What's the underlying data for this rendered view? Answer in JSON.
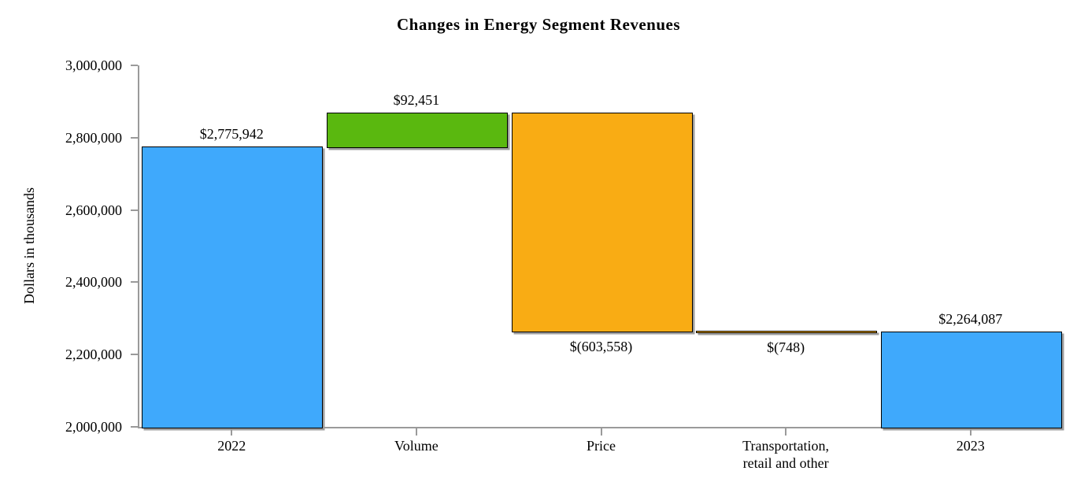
{
  "chart_data": {
    "type": "bar",
    "subtype": "waterfall",
    "title": "Changes in Energy Segment Revenues",
    "xlabel": "",
    "ylabel": "Dollars in thousands",
    "ylim": [
      2000000,
      3000000
    ],
    "yticks": [
      2000000,
      2200000,
      2400000,
      2600000,
      2800000,
      3000000
    ],
    "ytick_labels": [
      "2,000,000",
      "2,200,000",
      "2,400,000",
      "2,600,000",
      "2,800,000",
      "3,000,000"
    ],
    "grid": false,
    "legend": false,
    "categories": [
      "2022",
      "Volume",
      "Price",
      "Transportation,\nretail and other",
      "2023"
    ],
    "values": [
      2775942,
      92451,
      -603558,
      -748,
      2264087
    ],
    "bars": [
      {
        "category": "2022",
        "role": "total",
        "value": 2775942,
        "start": 0,
        "end": 2775942,
        "label": "$2,775,942",
        "label_position": "above",
        "color": "#3FA9FC"
      },
      {
        "category": "Volume",
        "role": "increase",
        "value": 92451,
        "start": 2775942,
        "end": 2868393,
        "label": "$92,451",
        "label_position": "above",
        "color": "#5AB80F"
      },
      {
        "category": "Price",
        "role": "decrease",
        "value": -603558,
        "start": 2868393,
        "end": 2264835,
        "label": "$(603,558)",
        "label_position": "below",
        "color": "#F9AC14"
      },
      {
        "category": "Transportation,\nretail and other",
        "role": "decrease",
        "value": -748,
        "start": 2264835,
        "end": 2264087,
        "label": "$(748)",
        "label_position": "below",
        "color": "#F9AC14"
      },
      {
        "category": "2023",
        "role": "total",
        "value": 2264087,
        "start": 0,
        "end": 2264087,
        "label": "$2,264,087",
        "label_position": "above",
        "color": "#3FA9FC"
      }
    ],
    "colors": {
      "total_bar": "#3FA9FC",
      "increase_bar": "#5AB80F",
      "decrease_bar": "#F9AC14",
      "bar_border": "#000000",
      "bar_shadow": "#9E9E9E",
      "axis": "#9A9A9A",
      "text": "#000000",
      "background": "#FFFFFF"
    }
  }
}
